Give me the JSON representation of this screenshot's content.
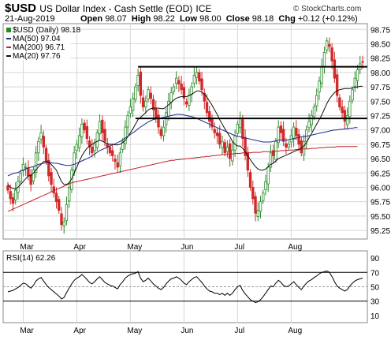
{
  "header": {
    "symbol": "$USD",
    "description": "US Dollar Index - Cash Settle (EOD)",
    "exchange": "ICE",
    "date": "21-Aug-2019",
    "open_label": "Open",
    "open": "98.07",
    "high_label": "High",
    "high": "98.22",
    "low_label": "Low",
    "low": "98.00",
    "close_label": "Close",
    "close": "98.18",
    "chg_label": "Chg",
    "chg": "+0.12 (+0.12%)",
    "brand": "© StockCharts.com"
  },
  "legend": {
    "price": "$USD (Daily) 98.18",
    "ma50": "MA(50) 97.04",
    "ma200": "MA(200) 96.71",
    "ma20": "MA(20) 97.76",
    "rsi": "RSI(14) 62.26"
  },
  "colors": {
    "up": "#2a8a2a",
    "down": "#d12a2a",
    "ma50": "#1f2a8a",
    "ma200": "#c41f2a",
    "ma20": "#111111",
    "rsi": "#000000",
    "grid": "#d8d8d8"
  },
  "chart_data": [
    {
      "type": "candlestick",
      "x_labels": [
        "Mar",
        "Apr",
        "May",
        "Jun",
        "Jul",
        "Aug"
      ],
      "y_ticks": [
        95.25,
        95.5,
        95.75,
        96.0,
        96.25,
        96.5,
        96.75,
        97.0,
        97.25,
        97.5,
        97.75,
        98.0,
        98.25,
        98.5,
        98.75
      ],
      "ylim": [
        95.1,
        98.85
      ],
      "close_series": [
        95.95,
        95.8,
        95.72,
        95.95,
        96.1,
        96.25,
        96.4,
        96.35,
        96.2,
        96.05,
        96.3,
        96.6,
        96.8,
        96.95,
        96.7,
        96.45,
        96.2,
        96.05,
        95.9,
        95.75,
        95.6,
        95.35,
        95.4,
        95.7,
        96.0,
        96.3,
        96.6,
        96.75,
        96.9,
        97.1,
        97.0,
        96.85,
        96.7,
        96.6,
        96.75,
        96.95,
        97.15,
        96.95,
        96.8,
        96.7,
        96.6,
        96.55,
        96.45,
        96.35,
        96.6,
        96.8,
        97.05,
        97.25,
        97.4,
        97.55,
        97.75,
        97.95,
        97.6,
        97.4,
        97.5,
        97.7,
        97.55,
        97.35,
        97.2,
        97.05,
        96.9,
        97.05,
        97.3,
        97.5,
        97.65,
        97.75,
        97.9,
        97.8,
        97.7,
        97.55,
        97.45,
        97.6,
        97.75,
        97.95,
        98.0,
        97.85,
        97.7,
        97.5,
        97.3,
        97.15,
        97.05,
        96.95,
        96.9,
        96.75,
        96.8,
        96.6,
        96.7,
        96.5,
        96.65,
        96.9,
        97.1,
        97.2,
        96.85,
        96.55,
        96.3,
        96.0,
        95.8,
        95.55,
        95.6,
        95.75,
        95.9,
        96.1,
        96.35,
        96.6,
        96.55,
        96.8,
        97.05,
        96.95,
        96.8,
        96.7,
        96.75,
        96.9,
        97.05,
        96.9,
        96.75,
        96.6,
        96.8,
        97.0,
        97.15,
        97.25,
        97.4,
        97.6,
        97.85,
        98.1,
        98.35,
        98.55,
        98.45,
        98.2,
        97.9,
        97.6,
        97.4,
        97.3,
        97.15,
        97.25,
        97.5,
        97.7,
        97.9,
        98.05,
        98.15,
        98.18
      ],
      "ma20": [
        96.05,
        96.0,
        95.98,
        95.97,
        96.0,
        96.05,
        96.1,
        96.15,
        96.2,
        96.2,
        96.25,
        96.3,
        96.36,
        96.4,
        96.45,
        96.45,
        96.44,
        96.4,
        96.35,
        96.3,
        96.2,
        96.1,
        96.05,
        96.05,
        96.08,
        96.15,
        96.25,
        96.35,
        96.45,
        96.55,
        96.62,
        96.68,
        96.72,
        96.75,
        96.78,
        96.8,
        96.82,
        96.8,
        96.78,
        96.76,
        96.75,
        96.75,
        96.74,
        96.74,
        96.75,
        96.78,
        96.82,
        96.88,
        96.95,
        97.02,
        97.1,
        97.18,
        97.22,
        97.26,
        97.3,
        97.35,
        97.37,
        97.38,
        97.38,
        97.38,
        97.37,
        97.37,
        97.4,
        97.44,
        97.48,
        97.52,
        97.55,
        97.57,
        97.58,
        97.58,
        97.58,
        97.6,
        97.62,
        97.65,
        97.68,
        97.68,
        97.66,
        97.62,
        97.57,
        97.5,
        97.43,
        97.35,
        97.27,
        97.18,
        97.1,
        97.02,
        96.95,
        96.88,
        96.8,
        96.75,
        96.72,
        96.72,
        96.68,
        96.62,
        96.55,
        96.48,
        96.42,
        96.36,
        96.32,
        96.3,
        96.3,
        96.32,
        96.36,
        96.4,
        96.42,
        96.46,
        96.5,
        96.52,
        96.54,
        96.56,
        96.58,
        96.6,
        96.62,
        96.64,
        96.66,
        96.68,
        96.72,
        96.78,
        96.86,
        96.94,
        97.02,
        97.1,
        97.18,
        97.26,
        97.36,
        97.46,
        97.54,
        97.6,
        97.65,
        97.68,
        97.7,
        97.71,
        97.72,
        97.72,
        97.72,
        97.73,
        97.74,
        97.75,
        97.76,
        97.76
      ],
      "ma50": [
        96.2,
        96.22,
        96.24,
        96.25,
        96.26,
        96.28,
        96.3,
        96.32,
        96.34,
        96.35,
        96.36,
        96.38,
        96.4,
        96.41,
        96.42,
        96.43,
        96.43,
        96.43,
        96.42,
        96.42,
        96.41,
        96.4,
        96.39,
        96.38,
        96.38,
        96.39,
        96.4,
        96.42,
        96.44,
        96.46,
        96.48,
        96.5,
        96.52,
        96.55,
        96.58,
        96.61,
        96.64,
        96.66,
        96.68,
        96.7,
        96.72,
        96.74,
        96.76,
        96.78,
        96.8,
        96.83,
        96.86,
        96.89,
        96.92,
        96.95,
        96.98,
        97.02,
        97.05,
        97.08,
        97.11,
        97.14,
        97.16,
        97.18,
        97.19,
        97.2,
        97.21,
        97.22,
        97.23,
        97.24,
        97.25,
        97.26,
        97.27,
        97.27,
        97.27,
        97.26,
        97.25,
        97.24,
        97.23,
        97.22,
        97.2,
        97.18,
        97.16,
        97.14,
        97.12,
        97.1,
        97.08,
        97.06,
        97.04,
        97.02,
        97.0,
        96.98,
        96.96,
        96.94,
        96.92,
        96.9,
        96.89,
        96.88,
        96.87,
        96.86,
        96.85,
        96.84,
        96.83,
        96.82,
        96.81,
        96.8,
        96.79,
        96.79,
        96.79,
        96.79,
        96.8,
        96.81,
        96.82,
        96.82,
        96.82,
        96.82,
        96.83,
        96.84,
        96.85,
        96.86,
        96.87,
        96.88,
        96.88,
        96.89,
        96.9,
        96.91,
        96.92,
        96.93,
        96.94,
        96.95,
        96.96,
        96.97,
        96.98,
        96.99,
        97.0,
        97.0,
        97.01,
        97.01,
        97.02,
        97.02,
        97.03,
        97.03,
        97.04,
        97.04
      ],
      "ma200": [
        95.58,
        95.6,
        95.62,
        95.64,
        95.66,
        95.68,
        95.7,
        95.72,
        95.74,
        95.76,
        95.78,
        95.8,
        95.82,
        95.84,
        95.86,
        95.88,
        95.9,
        95.92,
        95.94,
        95.96,
        95.98,
        96.0,
        96.02,
        96.04,
        96.06,
        96.08,
        96.09,
        96.1,
        96.11,
        96.12,
        96.13,
        96.14,
        96.15,
        96.16,
        96.17,
        96.18,
        96.19,
        96.2,
        96.21,
        96.22,
        96.23,
        96.24,
        96.25,
        96.26,
        96.27,
        96.28,
        96.29,
        96.3,
        96.31,
        96.32,
        96.33,
        96.34,
        96.35,
        96.36,
        96.37,
        96.38,
        96.39,
        96.4,
        96.41,
        96.42,
        96.43,
        96.44,
        96.45,
        96.46,
        96.47,
        96.47,
        96.48,
        96.48,
        96.49,
        96.49,
        96.5,
        96.5,
        96.51,
        96.51,
        96.52,
        96.52,
        96.53,
        96.53,
        96.54,
        96.54,
        96.55,
        96.55,
        96.56,
        96.56,
        96.57,
        96.57,
        96.58,
        96.58,
        96.58,
        96.59,
        96.59,
        96.59,
        96.6,
        96.6,
        96.6,
        96.6,
        96.61,
        96.61,
        96.61,
        96.61,
        96.62,
        96.62,
        96.62,
        96.62,
        96.63,
        96.63,
        96.63,
        96.64,
        96.64,
        96.64,
        96.65,
        96.65,
        96.65,
        96.66,
        96.66,
        96.66,
        96.67,
        96.67,
        96.67,
        96.68,
        96.68,
        96.68,
        96.69,
        96.69,
        96.69,
        96.7,
        96.7,
        96.7,
        96.7,
        96.71,
        96.71,
        96.71,
        96.71,
        96.71,
        96.71,
        96.71,
        96.71,
        96.71
      ],
      "horizontal_levels": [
        98.1,
        97.2
      ]
    },
    {
      "type": "line",
      "name": "RSI(14)",
      "y_ticks": [
        10,
        30,
        50,
        70,
        90
      ],
      "ylim": [
        0,
        100
      ],
      "reference_lines": [
        30,
        50,
        70
      ],
      "values": [
        43,
        44,
        45,
        47,
        49,
        52,
        55,
        54,
        51,
        48,
        52,
        58,
        61,
        63,
        58,
        53,
        49,
        46,
        43,
        40,
        37,
        33,
        35,
        42,
        48,
        54,
        59,
        62,
        64,
        67,
        64,
        60,
        56,
        54,
        57,
        61,
        64,
        60,
        56,
        54,
        52,
        51,
        49,
        47,
        53,
        57,
        62,
        65,
        67,
        68,
        69,
        71,
        62,
        57,
        59,
        62,
        58,
        54,
        51,
        48,
        46,
        49,
        54,
        58,
        61,
        62,
        64,
        62,
        59,
        55,
        53,
        57,
        60,
        63,
        64,
        60,
        56,
        51,
        47,
        44,
        43,
        41,
        41,
        39,
        41,
        38,
        41,
        38,
        41,
        46,
        50,
        52,
        45,
        40,
        36,
        32,
        30,
        28,
        29,
        32,
        36,
        41,
        46,
        51,
        50,
        55,
        59,
        56,
        52,
        50,
        51,
        54,
        57,
        53,
        49,
        46,
        51,
        55,
        58,
        60,
        63,
        65,
        68,
        70,
        71,
        72,
        70,
        64,
        57,
        51,
        48,
        46,
        44,
        46,
        51,
        55,
        58,
        60,
        61,
        62.26
      ]
    }
  ]
}
